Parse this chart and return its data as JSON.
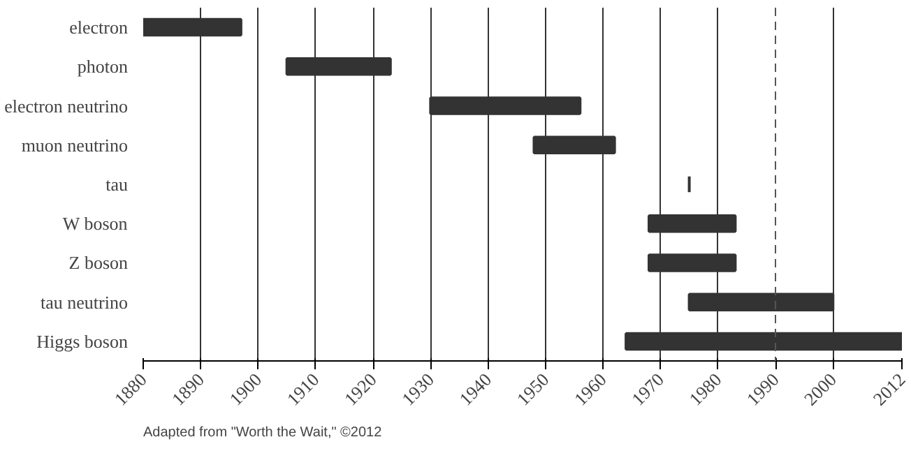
{
  "chart_data": {
    "type": "bar",
    "orientation": "horizontal",
    "categories": [
      "electron",
      "photon",
      "electron neutrino",
      "muon neutrino",
      "tau",
      "W boson",
      "Z boson",
      "tau neutrino",
      "Higgs boson"
    ],
    "base": [
      1880,
      1905,
      1930,
      1948,
      1975,
      1968,
      1968,
      1975,
      1964
    ],
    "values": [
      17,
      18,
      26,
      14,
      0,
      15,
      15,
      25,
      48
    ],
    "color": "#333333",
    "xlim": [
      1880,
      2012
    ],
    "xticks": [
      1880,
      1890,
      1900,
      1910,
      1920,
      1930,
      1940,
      1950,
      1960,
      1970,
      1980,
      1990,
      2000,
      2012
    ],
    "grid": "x",
    "ref_lines": [
      {
        "axis": "x",
        "value": 1990,
        "line_style": "dashed",
        "color": "#555555"
      }
    ],
    "annotations": [
      "Adapted from \"Worth the Wait,\" ©2012"
    ]
  }
}
